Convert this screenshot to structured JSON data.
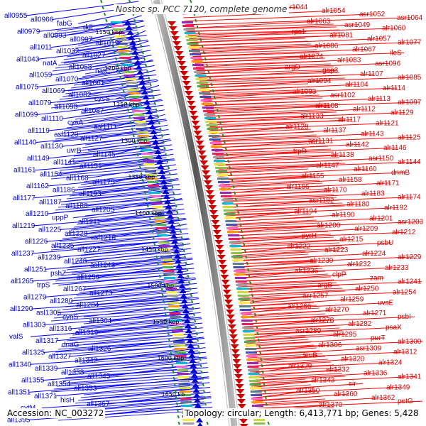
{
  "title": "Nostoc sp. PCC 7120, complete genome",
  "footer": {
    "accession": "Accession: NC_003272",
    "summary": "Topology: circular; Length: 6,413,771 bp; Genes: 5,428"
  },
  "colors": {
    "left_strand": "#0000cc",
    "right_strand": "#cc0000",
    "left_line": "#0000ff",
    "right_line": "#ff0000",
    "backbone": "#777777",
    "tick_dash": "#228b22"
  },
  "ticks": [
    "1150 kbp",
    "1200 kbp",
    "1250 kbp",
    "1300 kbp",
    "1350 kbp",
    "1400 kbp",
    "1450 kbp",
    "1500 kbp",
    "1550 kbp",
    "1600 kbp",
    "1650 kb"
  ],
  "genes_left": [
    "all0955",
    "all0966",
    "fabG",
    "ddl",
    "all0979",
    "all0993",
    "all0997",
    "all1019",
    "all1011",
    "all1032",
    "all1027",
    "all1043",
    "natA",
    "all1058",
    "natC",
    "all1059",
    "all1070",
    "all1061",
    "all1075",
    "all1069",
    "all1082",
    "cysS",
    "all1079",
    "all1098",
    "all1087",
    "all1099",
    "all1110",
    "cyaA",
    "asl1111",
    "all1119",
    "asl1120",
    "all1127",
    "all1140",
    "all1130",
    "uvrB",
    "all1145",
    "all1149",
    "all1141",
    "all1151",
    "all1161",
    "all1154",
    "all1168",
    "all1175",
    "all1162",
    "all1186",
    "all1193",
    "all1177",
    "all1187",
    "all1188",
    "all1205",
    "all1210",
    "uppP",
    "all1211",
    "all1219",
    "all1225",
    "all1228",
    "asl1218",
    "all1226",
    "all1235",
    "all1227",
    "all1237",
    "all1239",
    "all1248",
    "asl1243",
    "all1251",
    "psbZ",
    "all1256",
    "all1265",
    "trpS",
    "all1267",
    "all1273",
    "all1279",
    "all1280",
    "all1284",
    "all1290",
    "asl1305",
    "cynS",
    "all1304",
    "all1303",
    "all1316",
    "all1319",
    "valS",
    "all1317",
    "dnaG",
    "all1326",
    "all1325",
    "all1327",
    "all1342",
    "all1340",
    "all1339",
    "all1338",
    "all1345",
    "all1355",
    "all1354",
    "all1353",
    "all1351",
    "all1371",
    "hisH",
    "all1367",
    "cytM",
    "all1363",
    "all1380",
    "all1395"
  ],
  "genes_right": [
    "alr1044",
    "alr1054",
    "asr1052",
    "asr1064",
    "alr1063",
    "asr1049",
    "alr1060",
    "rps1",
    "alr1081",
    "alr1057",
    "alr1077",
    "alr1086",
    "alr1067",
    "ileS",
    "alr1074",
    "alr1083",
    "asr1096",
    "argD",
    "gap3",
    "alr1107",
    "alr1085",
    "alr1094",
    "alr1104",
    "alr1114",
    "alr1093",
    "asr1102",
    "alr1113",
    "alr1097",
    "alr1108",
    "alr1112",
    "alr1129",
    "alr1133",
    "alr1117",
    "alr1121",
    "alr1128",
    "alr1137",
    "alr1143",
    "alr1125",
    "asr1131",
    "alr1142",
    "alr1146",
    "trpD",
    "alr1138",
    "asr1150",
    "alr1144",
    "alr1147",
    "alr1160",
    "dnmB",
    "alr1155",
    "alr1158",
    "alr1171",
    "alr1166",
    "alr1170",
    "alr1183",
    "alr1174",
    "asr1182",
    "alr1180",
    "alr1192",
    "alr1194",
    "alr1190",
    "alr1201",
    "asr1203",
    "alr1200",
    "alr1209",
    "alr1212",
    "pyrH",
    "alr1215",
    "psbU",
    "alr1222",
    "alr1223",
    "alr1224",
    "alr1229",
    "alr1230",
    "alr1232",
    "alr1233",
    "alr1236",
    "clpP",
    "zam",
    "alr1241",
    "argB",
    "alr1250",
    "alr1254",
    "asr1257",
    "alr1259",
    "uvsE",
    "alr1266",
    "alr1270",
    "alr1271",
    "psbI",
    "alr1278",
    "alr1282",
    "psaX",
    "asr1289",
    "alr1295",
    "purT",
    "alr1300",
    "alr1306",
    "asr1309",
    "alr1312",
    "leuB",
    "alr1320",
    "alr1324",
    "alr1329",
    "alr1332",
    "alr1336",
    "alr1341",
    "alr1343",
    "sir",
    "alr1349",
    "alr1350",
    "alr1360",
    "alr1362",
    "petG",
    "alr1370"
  ]
}
